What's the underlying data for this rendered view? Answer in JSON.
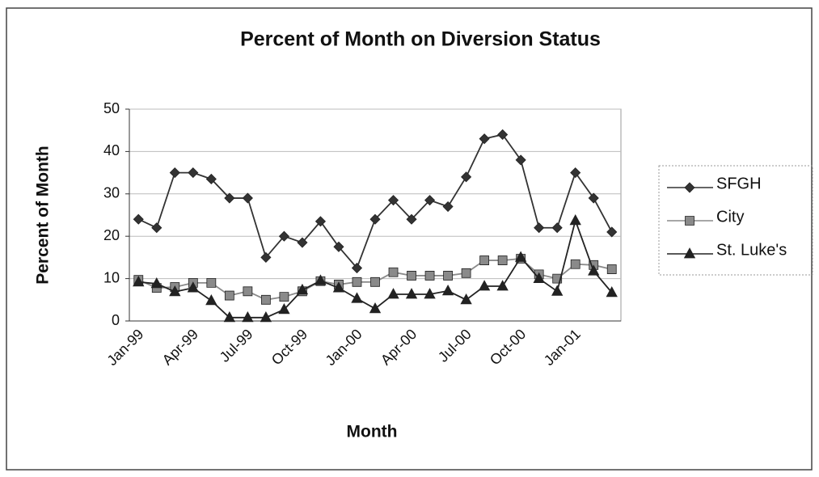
{
  "chart_data": {
    "type": "line",
    "title": "Percent of Month on Diversion Status",
    "xlabel": "Month",
    "ylabel": "Percent of Month",
    "categories": [
      "Jan-99",
      null,
      null,
      "Apr-99",
      null,
      null,
      "Jul-99",
      null,
      null,
      "Oct-99",
      null,
      null,
      "Jan-00",
      null,
      null,
      "Apr-00",
      null,
      null,
      "Jul-00",
      null,
      null,
      "Oct-00",
      null,
      null,
      "Jan-01",
      null,
      null
    ],
    "series": [
      {
        "name": "SFGH",
        "color": "#333333",
        "marker": "diamond",
        "values": [
          24,
          22,
          35,
          35,
          33.5,
          29,
          29,
          15,
          20,
          18.5,
          23.5,
          17.5,
          12.5,
          24,
          28.5,
          24,
          28.5,
          27,
          34,
          43,
          44,
          38,
          22,
          22,
          35,
          29,
          21
        ]
      },
      {
        "name": "City",
        "color": "#8a8a8a",
        "marker": "square",
        "values": [
          9.7,
          7.8,
          8,
          9,
          9,
          6,
          7,
          5,
          5.7,
          7,
          9.4,
          8.6,
          9.2,
          9.2,
          11.5,
          10.7,
          10.7,
          10.7,
          11.3,
          14.3,
          14.3,
          14.7,
          11,
          10,
          13.4,
          13.2,
          12.2
        ]
      },
      {
        "name": "St. Luke's",
        "color": "#222222",
        "marker": "triangle",
        "values": [
          9.2,
          8.8,
          6.9,
          7.8,
          4.8,
          0.8,
          0.8,
          0.8,
          2.7,
          7.3,
          9.5,
          7.8,
          5.3,
          2.9,
          6.3,
          6.3,
          6.3,
          7.1,
          5,
          8.2,
          8.2,
          15,
          10,
          7,
          23.7,
          11.8,
          6.7
        ]
      }
    ],
    "ylim": [
      0,
      50
    ],
    "yticks": [
      0,
      10,
      20,
      30,
      40,
      50
    ],
    "grid": true,
    "legend": "right"
  }
}
